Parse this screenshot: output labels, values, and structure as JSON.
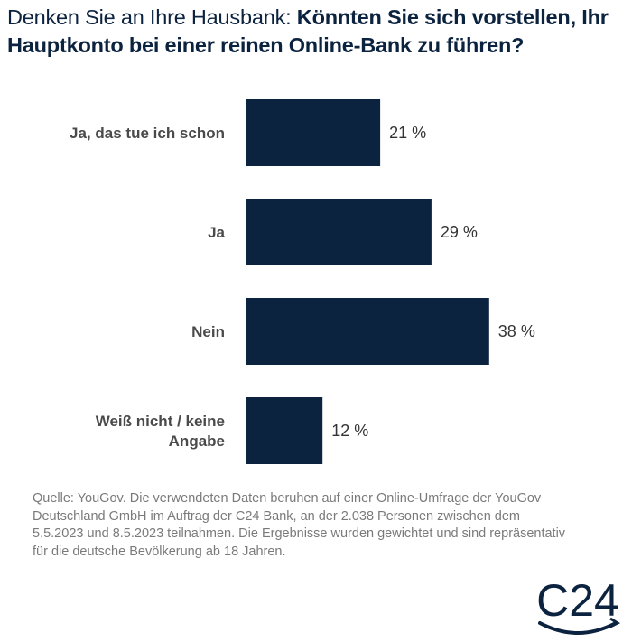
{
  "title": {
    "prefix": "Denken Sie an Ihre Hausbank: ",
    "question": "Könnten Sie sich vorstellen, Ihr Hauptkonto bei einer reinen Online-Bank zu führen?"
  },
  "chart_data": {
    "type": "bar",
    "orientation": "horizontal",
    "categories": [
      "Ja, das tue ich schon",
      "Ja",
      "Nein",
      "Weiß nicht / keine Angabe"
    ],
    "values": [
      21,
      29,
      38,
      12
    ],
    "value_labels": [
      "21 %",
      "29 %",
      "38 %",
      "12 %"
    ],
    "unit": "%",
    "bar_color": "#0c2340",
    "xlim": [
      0,
      40
    ],
    "grid": false,
    "legend": "none"
  },
  "source": "Quelle: YouGov. Die verwendeten Daten beruhen auf einer Online-Umfrage der YouGov Deutschland GmbH im Auftrag der C24 Bank, an der 2.038 Personen zwischen dem 5.5.2023 und 8.5.2023 teilnahmen. Die Ergebnisse wurden gewichtet und sind repräsentativ für die deutsche Bevölkerung ab 18 Jahren.",
  "logo": {
    "text": "C24",
    "color": "#0c2340"
  }
}
